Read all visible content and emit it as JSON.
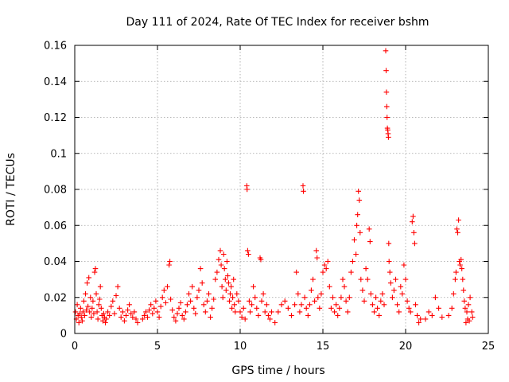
{
  "chart_data": {
    "type": "scatter",
    "title": "Day 111 of 2024, Rate Of TEC Index for receiver bshm",
    "xlabel": "GPS time / hours",
    "ylabel": "ROTI / TECUs",
    "xlim": [
      0,
      25
    ],
    "ylim": [
      0,
      0.16
    ],
    "xticks": [
      0,
      5,
      10,
      15,
      20,
      25
    ],
    "xtick_labels": [
      "0",
      "5",
      "10",
      "15",
      "20",
      "25"
    ],
    "yticks": [
      0,
      0.02,
      0.04,
      0.06,
      0.08,
      0.1,
      0.12,
      0.14,
      0.16
    ],
    "ytick_labels": [
      "0",
      "0.02",
      "0.04",
      "0.06",
      "0.08",
      "0.1",
      "0.12",
      "0.14",
      "0.16"
    ],
    "grid": true,
    "marker": "+",
    "marker_color": "#ff0000",
    "series": [
      {
        "points": [
          [
            0.05,
            0.012
          ],
          [
            0.1,
            0.008
          ],
          [
            0.15,
            0.016
          ],
          [
            0.2,
            0.01
          ],
          [
            0.25,
            0.006
          ],
          [
            0.3,
            0.011
          ],
          [
            0.35,
            0.014
          ],
          [
            0.4,
            0.009
          ],
          [
            0.45,
            0.007
          ],
          [
            0.5,
            0.012
          ],
          [
            0.55,
            0.018
          ],
          [
            0.6,
            0.01
          ],
          [
            0.65,
            0.022
          ],
          [
            0.7,
            0.013
          ],
          [
            0.75,
            0.028
          ],
          [
            0.8,
            0.015
          ],
          [
            0.85,
            0.031
          ],
          [
            0.9,
            0.012
          ],
          [
            0.95,
            0.02
          ],
          [
            1.0,
            0.009
          ],
          [
            1.05,
            0.014
          ],
          [
            1.1,
            0.018
          ],
          [
            1.15,
            0.011
          ],
          [
            1.2,
            0.034
          ],
          [
            1.25,
            0.036
          ],
          [
            1.3,
            0.022
          ],
          [
            1.35,
            0.012
          ],
          [
            1.4,
            0.008
          ],
          [
            1.45,
            0.016
          ],
          [
            1.5,
            0.019
          ],
          [
            1.55,
            0.026
          ],
          [
            1.6,
            0.014
          ],
          [
            1.65,
            0.01
          ],
          [
            1.7,
            0.007
          ],
          [
            1.75,
            0.011
          ],
          [
            1.8,
            0.009
          ],
          [
            1.85,
            0.006
          ],
          [
            1.9,
            0.008
          ],
          [
            2.0,
            0.012
          ],
          [
            2.1,
            0.01
          ],
          [
            2.2,
            0.015
          ],
          [
            2.3,
            0.018
          ],
          [
            2.4,
            0.011
          ],
          [
            2.5,
            0.021
          ],
          [
            2.6,
            0.026
          ],
          [
            2.7,
            0.014
          ],
          [
            2.8,
            0.009
          ],
          [
            2.9,
            0.012
          ],
          [
            3.0,
            0.007
          ],
          [
            3.1,
            0.01
          ],
          [
            3.2,
            0.013
          ],
          [
            3.3,
            0.016
          ],
          [
            3.4,
            0.011
          ],
          [
            3.5,
            0.009
          ],
          [
            3.6,
            0.012
          ],
          [
            3.7,
            0.008
          ],
          [
            3.8,
            0.006
          ],
          [
            4.1,
            0.008
          ],
          [
            4.2,
            0.01
          ],
          [
            4.3,
            0.012
          ],
          [
            4.4,
            0.009
          ],
          [
            4.5,
            0.013
          ],
          [
            4.6,
            0.016
          ],
          [
            4.7,
            0.011
          ],
          [
            4.8,
            0.014
          ],
          [
            4.9,
            0.018
          ],
          [
            5.0,
            0.012
          ],
          [
            5.1,
            0.009
          ],
          [
            5.2,
            0.015
          ],
          [
            5.3,
            0.02
          ],
          [
            5.4,
            0.024
          ],
          [
            5.5,
            0.017
          ],
          [
            5.6,
            0.026
          ],
          [
            5.7,
            0.038
          ],
          [
            5.75,
            0.04
          ],
          [
            5.8,
            0.019
          ],
          [
            5.9,
            0.013
          ],
          [
            6.0,
            0.009
          ],
          [
            6.1,
            0.007
          ],
          [
            6.2,
            0.011
          ],
          [
            6.3,
            0.014
          ],
          [
            6.4,
            0.017
          ],
          [
            6.5,
            0.01
          ],
          [
            6.6,
            0.008
          ],
          [
            6.7,
            0.012
          ],
          [
            6.8,
            0.016
          ],
          [
            6.9,
            0.022
          ],
          [
            7.0,
            0.018
          ],
          [
            7.1,
            0.026
          ],
          [
            7.2,
            0.014
          ],
          [
            7.3,
            0.011
          ],
          [
            7.4,
            0.02
          ],
          [
            7.5,
            0.024
          ],
          [
            7.6,
            0.036
          ],
          [
            7.7,
            0.028
          ],
          [
            7.8,
            0.016
          ],
          [
            7.9,
            0.012
          ],
          [
            8.0,
            0.018
          ],
          [
            8.1,
            0.022
          ],
          [
            8.2,
            0.009
          ],
          [
            8.3,
            0.014
          ],
          [
            8.4,
            0.019
          ],
          [
            8.5,
            0.03
          ],
          [
            8.6,
            0.034
          ],
          [
            8.7,
            0.041
          ],
          [
            8.8,
            0.046
          ],
          [
            8.85,
            0.038
          ],
          [
            8.9,
            0.026
          ],
          [
            8.95,
            0.02
          ],
          [
            9.0,
            0.044
          ],
          [
            9.05,
            0.036
          ],
          [
            9.1,
            0.03
          ],
          [
            9.15,
            0.024
          ],
          [
            9.2,
            0.04
          ],
          [
            9.25,
            0.032
          ],
          [
            9.3,
            0.028
          ],
          [
            9.35,
            0.018
          ],
          [
            9.4,
            0.022
          ],
          [
            9.45,
            0.026
          ],
          [
            9.5,
            0.014
          ],
          [
            9.55,
            0.02
          ],
          [
            9.6,
            0.03
          ],
          [
            9.65,
            0.016
          ],
          [
            9.7,
            0.012
          ],
          [
            9.8,
            0.022
          ],
          [
            9.9,
            0.018
          ],
          [
            10.0,
            0.012
          ],
          [
            10.1,
            0.009
          ],
          [
            10.2,
            0.014
          ],
          [
            10.3,
            0.008
          ],
          [
            10.4,
            0.082
          ],
          [
            10.42,
            0.08
          ],
          [
            10.45,
            0.046
          ],
          [
            10.5,
            0.044
          ],
          [
            10.55,
            0.018
          ],
          [
            10.6,
            0.012
          ],
          [
            10.7,
            0.016
          ],
          [
            10.8,
            0.026
          ],
          [
            10.9,
            0.02
          ],
          [
            11.0,
            0.014
          ],
          [
            11.1,
            0.01
          ],
          [
            11.2,
            0.042
          ],
          [
            11.25,
            0.041
          ],
          [
            11.3,
            0.018
          ],
          [
            11.4,
            0.022
          ],
          [
            11.5,
            0.012
          ],
          [
            11.6,
            0.016
          ],
          [
            11.7,
            0.01
          ],
          [
            11.8,
            0.008
          ],
          [
            11.9,
            0.012
          ],
          [
            12.1,
            0.006
          ],
          [
            12.3,
            0.012
          ],
          [
            12.5,
            0.016
          ],
          [
            12.7,
            0.018
          ],
          [
            12.9,
            0.014
          ],
          [
            13.1,
            0.01
          ],
          [
            13.3,
            0.016
          ],
          [
            13.4,
            0.034
          ],
          [
            13.5,
            0.022
          ],
          [
            13.6,
            0.012
          ],
          [
            13.7,
            0.016
          ],
          [
            13.8,
            0.082
          ],
          [
            13.82,
            0.079
          ],
          [
            13.9,
            0.02
          ],
          [
            14.0,
            0.014
          ],
          [
            14.1,
            0.01
          ],
          [
            14.2,
            0.016
          ],
          [
            14.3,
            0.024
          ],
          [
            14.4,
            0.03
          ],
          [
            14.5,
            0.018
          ],
          [
            14.6,
            0.046
          ],
          [
            14.65,
            0.042
          ],
          [
            14.7,
            0.02
          ],
          [
            14.8,
            0.014
          ],
          [
            14.9,
            0.022
          ],
          [
            15.0,
            0.034
          ],
          [
            15.1,
            0.038
          ],
          [
            15.2,
            0.036
          ],
          [
            15.3,
            0.04
          ],
          [
            15.4,
            0.026
          ],
          [
            15.5,
            0.014
          ],
          [
            15.6,
            0.02
          ],
          [
            15.7,
            0.012
          ],
          [
            15.8,
            0.016
          ],
          [
            15.9,
            0.01
          ],
          [
            16.0,
            0.014
          ],
          [
            16.1,
            0.02
          ],
          [
            16.2,
            0.03
          ],
          [
            16.3,
            0.026
          ],
          [
            16.4,
            0.018
          ],
          [
            16.5,
            0.012
          ],
          [
            16.6,
            0.02
          ],
          [
            16.7,
            0.034
          ],
          [
            16.8,
            0.04
          ],
          [
            16.9,
            0.052
          ],
          [
            17.0,
            0.044
          ],
          [
            17.05,
            0.06
          ],
          [
            17.1,
            0.066
          ],
          [
            17.15,
            0.079
          ],
          [
            17.2,
            0.074
          ],
          [
            17.25,
            0.056
          ],
          [
            17.3,
            0.03
          ],
          [
            17.4,
            0.024
          ],
          [
            17.5,
            0.018
          ],
          [
            17.6,
            0.036
          ],
          [
            17.7,
            0.03
          ],
          [
            17.8,
            0.058
          ],
          [
            17.85,
            0.051
          ],
          [
            17.9,
            0.022
          ],
          [
            18.0,
            0.016
          ],
          [
            18.1,
            0.012
          ],
          [
            18.2,
            0.02
          ],
          [
            18.3,
            0.014
          ],
          [
            18.4,
            0.01
          ],
          [
            18.5,
            0.018
          ],
          [
            18.6,
            0.022
          ],
          [
            18.7,
            0.016
          ],
          [
            18.8,
            0.157
          ],
          [
            18.82,
            0.146
          ],
          [
            18.84,
            0.134
          ],
          [
            18.86,
            0.126
          ],
          [
            18.88,
            0.12
          ],
          [
            18.9,
            0.114
          ],
          [
            18.92,
            0.113
          ],
          [
            18.94,
            0.111
          ],
          [
            18.96,
            0.109
          ],
          [
            18.98,
            0.05
          ],
          [
            19.0,
            0.04
          ],
          [
            19.05,
            0.034
          ],
          [
            19.1,
            0.028
          ],
          [
            19.2,
            0.02
          ],
          [
            19.3,
            0.024
          ],
          [
            19.4,
            0.03
          ],
          [
            19.5,
            0.016
          ],
          [
            19.6,
            0.012
          ],
          [
            19.7,
            0.026
          ],
          [
            19.8,
            0.022
          ],
          [
            19.9,
            0.038
          ],
          [
            20.0,
            0.03
          ],
          [
            20.1,
            0.018
          ],
          [
            20.2,
            0.014
          ],
          [
            20.3,
            0.012
          ],
          [
            20.4,
            0.062
          ],
          [
            20.45,
            0.065
          ],
          [
            20.5,
            0.056
          ],
          [
            20.55,
            0.05
          ],
          [
            20.6,
            0.016
          ],
          [
            20.7,
            0.01
          ],
          [
            20.8,
            0.006
          ],
          [
            20.9,
            0.008
          ],
          [
            21.2,
            0.008
          ],
          [
            21.4,
            0.012
          ],
          [
            21.6,
            0.01
          ],
          [
            21.8,
            0.02
          ],
          [
            22.0,
            0.014
          ],
          [
            22.2,
            0.009
          ],
          [
            22.6,
            0.01
          ],
          [
            22.8,
            0.014
          ],
          [
            22.9,
            0.022
          ],
          [
            23.0,
            0.03
          ],
          [
            23.05,
            0.034
          ],
          [
            23.1,
            0.058
          ],
          [
            23.15,
            0.056
          ],
          [
            23.2,
            0.063
          ],
          [
            23.25,
            0.04
          ],
          [
            23.3,
            0.038
          ],
          [
            23.35,
            0.041
          ],
          [
            23.4,
            0.036
          ],
          [
            23.45,
            0.03
          ],
          [
            23.5,
            0.024
          ],
          [
            23.55,
            0.018
          ],
          [
            23.6,
            0.014
          ],
          [
            23.7,
            0.012
          ],
          [
            23.8,
            0.016
          ],
          [
            23.9,
            0.02
          ],
          [
            24.0,
            0.012
          ],
          [
            24.05,
            0.009
          ],
          [
            23.75,
            0.008
          ],
          [
            23.65,
            0.006
          ],
          [
            23.85,
            0.007
          ]
        ]
      }
    ]
  }
}
